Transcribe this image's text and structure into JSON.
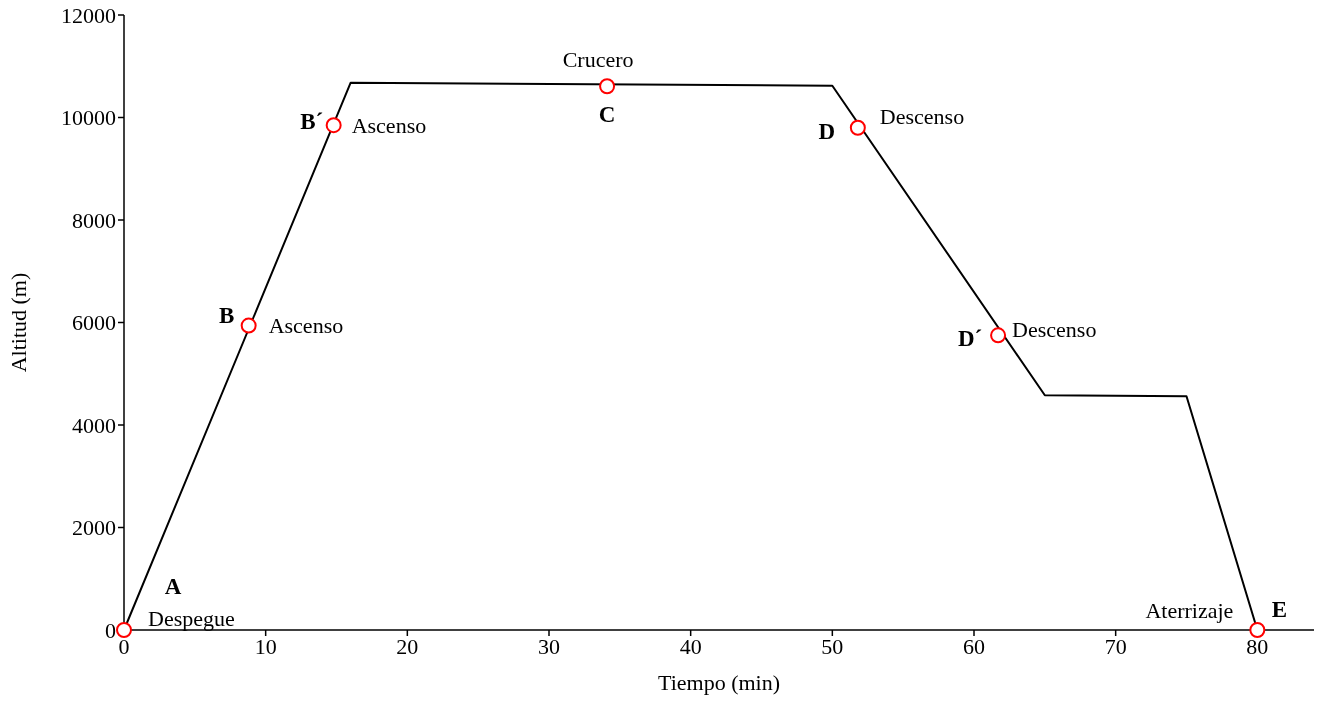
{
  "chart_data": {
    "type": "line",
    "xlabel": "Tiempo (min)",
    "ylabel": "Altitud (m)",
    "xlim": [
      0,
      84
    ],
    "xticks": [
      0,
      10,
      20,
      30,
      40,
      50,
      60,
      70,
      80
    ],
    "ylim": [
      0,
      12000
    ],
    "yticks": [
      0,
      2000,
      4000,
      6000,
      8000,
      10000,
      12000
    ],
    "grid": false,
    "legend": false,
    "series": [
      {
        "color": "#000000",
        "marker": "none",
        "line_style": "solid",
        "x": [
          0,
          16,
          50,
          65,
          75,
          80
        ],
        "values": [
          0,
          10680,
          10620,
          4580,
          4560,
          0
        ]
      },
      {
        "type": "scatter",
        "color": "#ff0000",
        "marker": "circle",
        "x": [
          0,
          8.8,
          14.8,
          34.1,
          51.8,
          61.7,
          80
        ],
        "values": [
          0,
          5940,
          9850,
          10610,
          9800,
          5750,
          0
        ],
        "value_labels": [
          "A",
          "B",
          "B´",
          "C",
          "D",
          "D´",
          "E"
        ]
      }
    ],
    "annotations": [
      {
        "text": "Despegue",
        "x": 0,
        "y": 0
      },
      {
        "text": "Ascenso",
        "x": 8.8,
        "y": 5940
      },
      {
        "text": "Ascenso",
        "x": 14.8,
        "y": 9850
      },
      {
        "text": "Crucero",
        "x": 34.1,
        "y": 10610
      },
      {
        "text": "Descenso",
        "x": 51.8,
        "y": 9800
      },
      {
        "text": "Descenso",
        "x": 61.7,
        "y": 5750
      },
      {
        "text": "Aterrizaje",
        "x": 80,
        "y": 0
      }
    ]
  }
}
